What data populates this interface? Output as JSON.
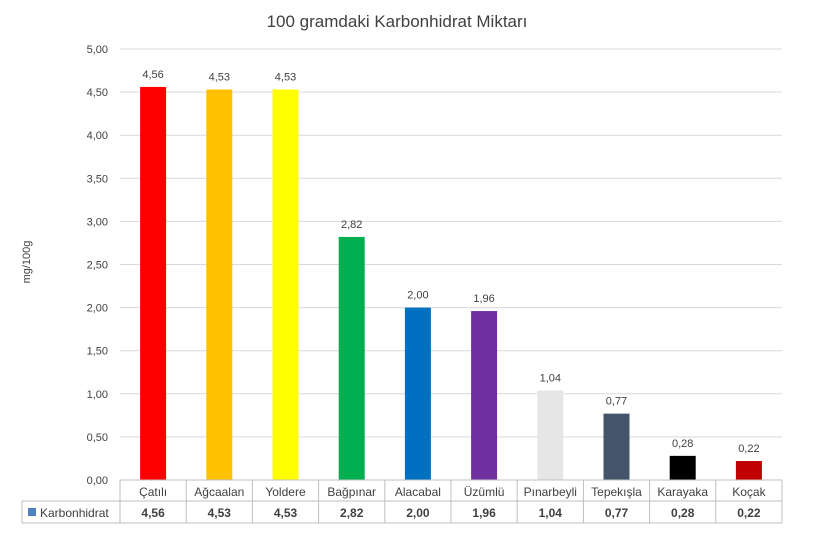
{
  "chart_data": {
    "type": "bar",
    "title": "100 gramdaki Karbonhidrat Miktarı",
    "ylabel": "mg/100g",
    "xlabel": "",
    "ylim": [
      0,
      5
    ],
    "ytick_step": 0.5,
    "ytick_labels": [
      "0,00",
      "0,50",
      "1,00",
      "1,50",
      "2,00",
      "2,50",
      "3,00",
      "3,50",
      "4,00",
      "4,50",
      "5,00"
    ],
    "grid": true,
    "legend": "data-table",
    "categories": [
      "Çatılı",
      "Ağcaalan",
      "Yoldere",
      "Bağpınar",
      "Alacabal",
      "Üzümlü",
      "Pınarbeyli",
      "Tepekışla",
      "Karayaka",
      "Koçak"
    ],
    "series": [
      {
        "name": "Karbonhidrat",
        "values": [
          4.56,
          4.53,
          4.53,
          2.82,
          2.0,
          1.96,
          1.04,
          0.77,
          0.28,
          0.22
        ],
        "value_labels": [
          "4,56",
          "4,53",
          "4,53",
          "2,82",
          "2,00",
          "1,96",
          "1,04",
          "0,77",
          "0,28",
          "0,22"
        ],
        "legend_color": "#4f81bd",
        "colors": [
          "#ff0000",
          "#ffc000",
          "#ffff00",
          "#00b050",
          "#0070c0",
          "#7030a0",
          "#e6e6e6",
          "#44546a",
          "#000000",
          "#c00000"
        ]
      }
    ]
  }
}
